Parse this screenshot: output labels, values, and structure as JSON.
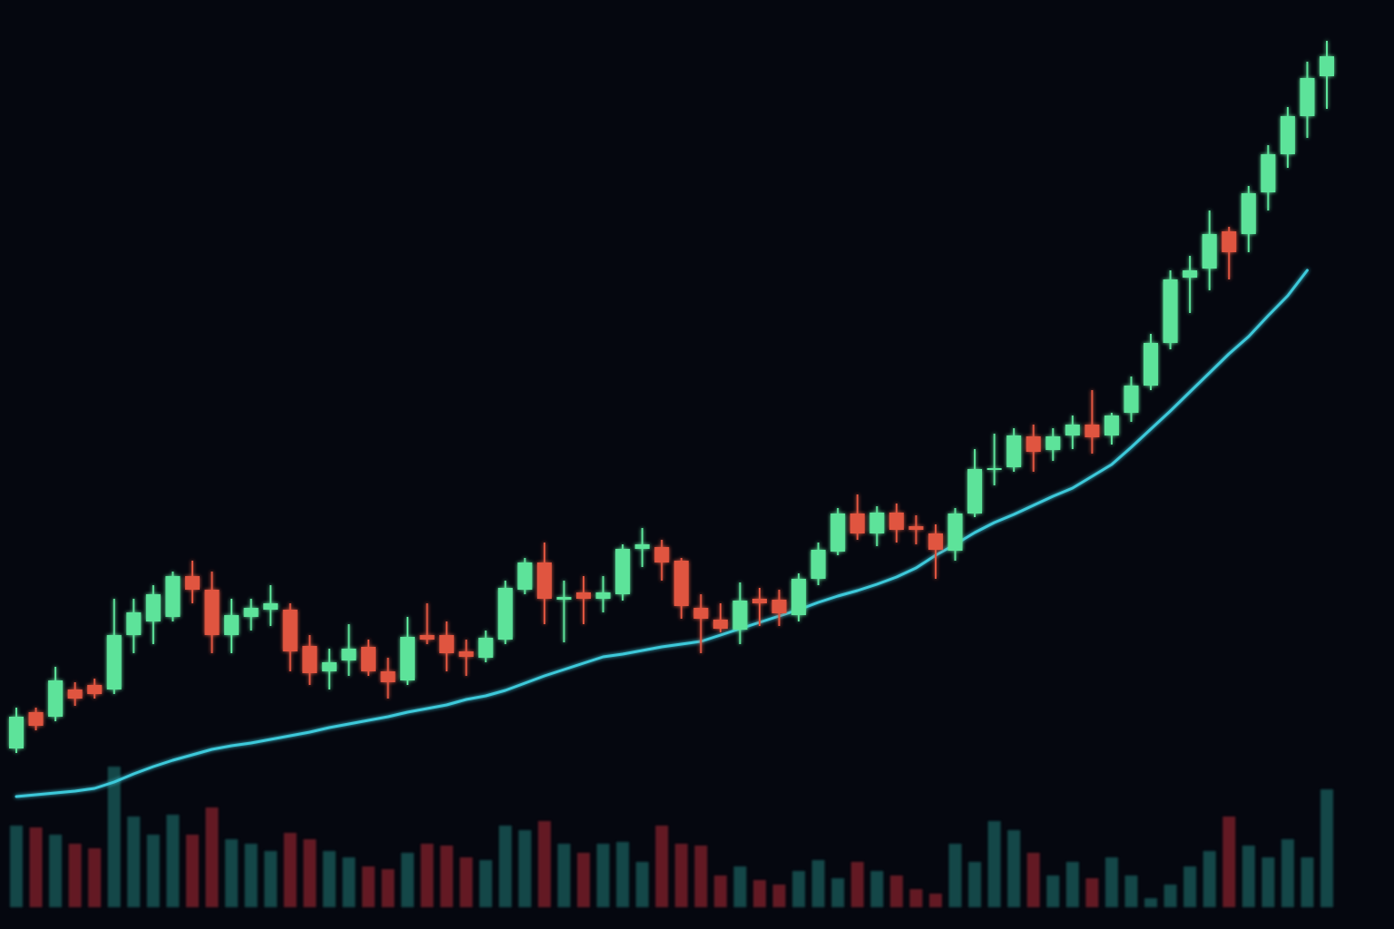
{
  "chart_data": {
    "type": "candlestick",
    "background": "#05070f",
    "up_color": "#5de39a",
    "down_color": "#e0553f",
    "open": [
      199,
      239,
      234,
      264,
      269,
      264,
      324,
      339,
      344,
      389,
      374,
      324,
      344,
      352,
      352,
      312,
      284,
      296,
      311,
      284,
      274,
      324,
      324,
      306,
      299,
      319,
      374,
      404,
      363,
      371,
      364,
      369,
      419,
      421,
      406,
      354,
      341,
      330,
      364,
      363,
      346,
      386,
      416,
      458,
      436,
      459,
      444,
      436,
      417,
      458,
      506,
      509,
      543,
      528,
      544,
      556,
      544,
      569,
      599,
      646,
      718,
      728,
      769,
      766,
      812,
      854,
      896,
      940
    ],
    "high": [
      244,
      244,
      289,
      272,
      276,
      364,
      364,
      379,
      394,
      406,
      394,
      364,
      364,
      379,
      359,
      324,
      309,
      336,
      319,
      299,
      344,
      359,
      339,
      319,
      329,
      384,
      409,
      426,
      384,
      389,
      389,
      424,
      442,
      429,
      409,
      369,
      359,
      382,
      376,
      374,
      392,
      426,
      464,
      479,
      466,
      469,
      456,
      446,
      464,
      529,
      546,
      552,
      556,
      552,
      566,
      594,
      569,
      609,
      656,
      726,
      742,
      792,
      774,
      819,
      864,
      906,
      956,
      979
    ],
    "low": [
      194,
      219,
      229,
      246,
      254,
      259,
      304,
      314,
      339,
      359,
      304,
      304,
      329,
      334,
      284,
      269,
      264,
      279,
      279,
      254,
      269,
      314,
      284,
      279,
      294,
      314,
      369,
      336,
      316,
      336,
      349,
      362,
      399,
      384,
      342,
      304,
      327,
      314,
      334,
      334,
      339,
      379,
      412,
      429,
      422,
      426,
      424,
      386,
      406,
      454,
      489,
      504,
      504,
      516,
      529,
      524,
      534,
      559,
      594,
      639,
      679,
      704,
      716,
      746,
      792,
      839,
      872,
      904
    ],
    "close": [
      234,
      224,
      274,
      254,
      259,
      324,
      349,
      369,
      389,
      374,
      324,
      346,
      354,
      359,
      306,
      282,
      294,
      309,
      284,
      272,
      322,
      319,
      304,
      300,
      321,
      376,
      404,
      364,
      366,
      364,
      371,
      419,
      424,
      404,
      356,
      342,
      331,
      362,
      359,
      348,
      386,
      418,
      458,
      436,
      459,
      440,
      440,
      418,
      458,
      507,
      508,
      544,
      526,
      543,
      556,
      542,
      566,
      599,
      646,
      716,
      726,
      766,
      746,
      811,
      854,
      896,
      938,
      962
    ],
    "ylim": [
      0,
      1024
    ],
    "ma_values": [
      146,
      148,
      150,
      152,
      155,
      162,
      171,
      179,
      186,
      192,
      198,
      202,
      205,
      209,
      213,
      217,
      222,
      226,
      230,
      234,
      239,
      243,
      247,
      253,
      257,
      263,
      271,
      279,
      286,
      293,
      300,
      303,
      307,
      311,
      314,
      317,
      324,
      331,
      338,
      345,
      352,
      360,
      367,
      373,
      380,
      388,
      398,
      412,
      424,
      437,
      448,
      457,
      467,
      477,
      486,
      499,
      512,
      531,
      551,
      571,
      592,
      613,
      634,
      653,
      676,
      698,
      726,
      null
    ],
    "ma_color": "#3cc9da",
    "volume": [
      90,
      88,
      80,
      70,
      65,
      155,
      100,
      80,
      102,
      80,
      110,
      75,
      70,
      62,
      82,
      75,
      62,
      55,
      45,
      42,
      60,
      70,
      68,
      55,
      52,
      90,
      85,
      95,
      70,
      60,
      70,
      72,
      50,
      90,
      70,
      68,
      35,
      45,
      30,
      25,
      40,
      52,
      32,
      50,
      40,
      35,
      20,
      15,
      70,
      50,
      95,
      85,
      60,
      35,
      50,
      32,
      55,
      35,
      10,
      25,
      45,
      62,
      100,
      68,
      55,
      75,
      55,
      130
    ],
    "volume_up_color": "#15504f",
    "volume_down_color": "#6e1b26",
    "volume_ylim": [
      0,
      1000
    ]
  }
}
